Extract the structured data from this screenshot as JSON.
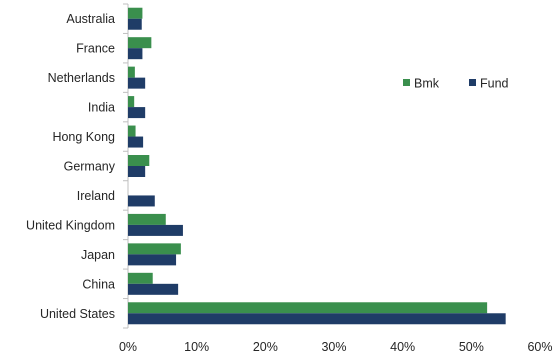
{
  "chart_data": {
    "type": "bar",
    "orientation": "horizontal",
    "categories": [
      "Australia",
      "France",
      "Netherlands",
      "India",
      "Hong Kong",
      "Germany",
      "Ireland",
      "United Kingdom",
      "Japan",
      "China",
      "United States"
    ],
    "series": [
      {
        "name": "Bmk",
        "color": "#3a8f4d",
        "values": [
          2.1,
          3.4,
          1.0,
          0.9,
          1.1,
          3.1,
          0.0,
          5.5,
          7.7,
          3.6,
          52.3
        ]
      },
      {
        "name": "Fund",
        "color": "#1f3c67",
        "values": [
          2.0,
          2.1,
          2.5,
          2.5,
          2.2,
          2.5,
          3.9,
          8.0,
          7.0,
          7.3,
          55.0
        ]
      }
    ],
    "xlim": [
      0,
      60
    ],
    "xticks": [
      0,
      10,
      20,
      30,
      40,
      50,
      60
    ],
    "tick_suffix": "%",
    "legend": "upper-right"
  }
}
